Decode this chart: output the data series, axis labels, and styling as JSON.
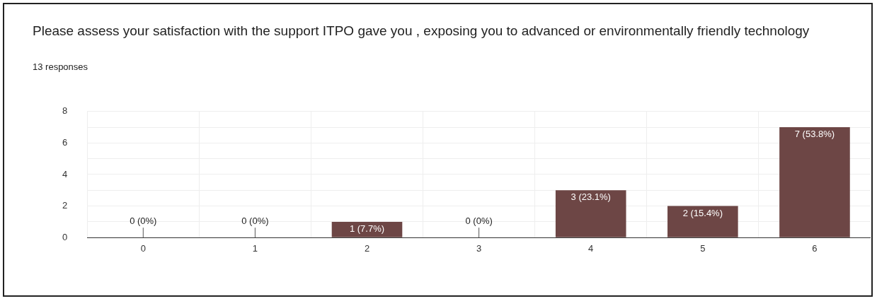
{
  "chart_data": {
    "type": "bar",
    "title": "Please assess your satisfaction with the support ITPO gave you ,   exposing you to advanced or environmentally friendly technology",
    "subtitle": "13 responses",
    "categories": [
      "0",
      "1",
      "2",
      "3",
      "4",
      "5",
      "6"
    ],
    "values": [
      0,
      0,
      1,
      0,
      3,
      2,
      7
    ],
    "value_labels": [
      "0 (0%)",
      "0 (0%)",
      "1 (7.7%)",
      "0 (0%)",
      "3 (23.1%)",
      "2 (15.4%)",
      "7 (53.8%)"
    ],
    "color": "#6d4645",
    "ylim": [
      0,
      8
    ],
    "yticks": [
      0,
      {
        "value": 1,
        "label": null
      },
      2,
      {
        "value": 3,
        "label": null
      },
      4,
      {
        "value": 5,
        "label": null
      },
      6,
      {
        "value": 7,
        "label": null
      },
      8
    ],
    "grid": true,
    "legend": false
  }
}
